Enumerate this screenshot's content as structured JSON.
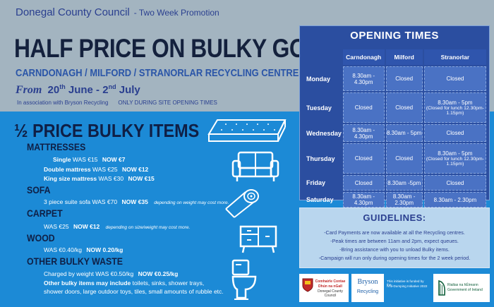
{
  "header": {
    "organisation": "Donegal County Council",
    "promotion": "- Two Week Promotion",
    "headline": "HALF PRICE ON BULKY GOODS",
    "centres": "CARNDONAGH / MILFORD / STRANORLAR RECYCLING CENTRES",
    "from_word": "From",
    "date_start_day": "20",
    "date_start_suffix": "th",
    "date_start_month": "June -",
    "date_end_day": "2",
    "date_end_suffix": "nd",
    "date_end_month": "July",
    "association": "In association with Bryson Recycling",
    "only_during": "ONLY DURING SITE OPENING TIMES"
  },
  "items": {
    "title": "½ PRICE BULKY ITEMS",
    "mattresses": {
      "heading": "MATTRESSES",
      "single_name": "Single",
      "single_was": "WAS €15",
      "single_now": "NOW €7",
      "double_name": "Double mattress",
      "double_was": "WAS €25",
      "double_now": "NOW €12",
      "king_name": "King size mattress",
      "king_was": "WAS €30",
      "king_now": "NOW €15"
    },
    "sofa": {
      "heading": "SOFA",
      "text": "3 piece suite sofa  WAS €70",
      "now": "NOW €35",
      "note": "depending on weight may cost more."
    },
    "carpet": {
      "heading": "CARPET",
      "text": "WAS €25",
      "now": "NOW €12",
      "note": "depending on size/weight may cost more."
    },
    "wood": {
      "heading": "WOOD",
      "text": "WAS €0.40/kg",
      "now": "NOW 0.20/kg"
    },
    "other": {
      "heading": "OTHER BULKY WASTE",
      "text": "Charged by weight  WAS €0.50/kg",
      "now": "NOW €0.25/kg",
      "include_bold": "Other bulky items may include",
      "include_rest": " toilets, sinks, shower trays,",
      "include_line2": "shower doors, large outdoor toys, tiles, small amounts of rubble etc."
    }
  },
  "icons": [
    "mattress-icon",
    "sofa-icon",
    "carpet-roll-icon",
    "cabinet-icon",
    "toilet-icon"
  ],
  "opening_times": {
    "title": "OPENING TIMES",
    "columns": [
      "Carndonagh",
      "Milford",
      "Stranorlar"
    ],
    "rows": [
      {
        "day": "Monday",
        "values": [
          "8.30am - 4.30pm",
          "Closed",
          "Closed"
        ]
      },
      {
        "day": "Tuesday",
        "values": [
          "Closed",
          "Closed",
          "8.30am - 5pm"
        ],
        "lunch": "(Closed for lunch 12.30pm-1.15pm)"
      },
      {
        "day": "Wednesday",
        "values": [
          "8.30am - 4.30pm",
          "8.30am - 5pm",
          "Closed"
        ]
      },
      {
        "day": "Thursday",
        "values": [
          "Closed",
          "Closed",
          "8.30am - 5pm"
        ],
        "lunch": "(Closed for lunch 12.30pm-1.15pm)"
      },
      {
        "day": "Friday",
        "values": [
          "Closed",
          "8.30am -5pm",
          "Closed"
        ]
      },
      {
        "day": "Saturday",
        "values": [
          "8.30am - 4.30pm",
          "8.30am - 2.30pm",
          "8.30am - 2.30pm"
        ]
      }
    ]
  },
  "guidelines": {
    "title": "GUIDELINES:",
    "lines": [
      "-Card Payments are now available at all the Recycling centres.",
      "-Peak times are between 11am and 2pm, expect queues.",
      "-Bring assistance with you to unload Bulky items.",
      "-Campaign will run only during opening times for the 2 week period."
    ]
  },
  "logos": {
    "council_line1": "Comhairle Contae",
    "council_line2": "Dhún na nGall",
    "council_line3": "Donegal County Council",
    "bryson_line1": "Bryson",
    "bryson_line2": "Recycling",
    "funding_line1": "This initiative is funded by the",
    "funding_line2": "Anti-Dumping Initiative 2022",
    "gov_line1": "Rialtas na hÉireann",
    "gov_line2": "Government of Ireland"
  },
  "colors": {
    "page_blue": "#1c8ad6",
    "banner_grey": "#a3b4c0",
    "navy": "#14213d",
    "table_blue": "#2b4ea0",
    "guidelines_bg": "#b9d6ee"
  }
}
